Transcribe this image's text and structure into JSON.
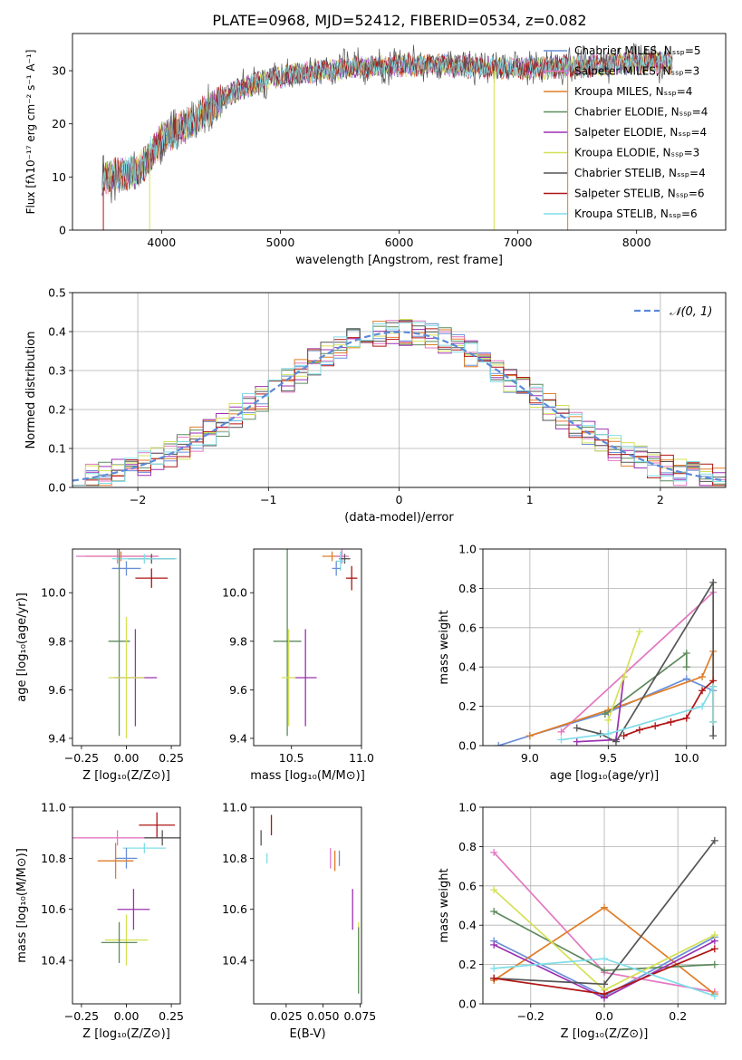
{
  "figure": {
    "title": "PLATE=0968, MJD=52412, FIBERID=0534, z=0.082"
  },
  "chart_data": [
    {
      "id": "spectrum",
      "type": "line",
      "xlabel": "wavelength [Angstrom, rest frame]",
      "ylabel": "Flux [fλ10⁻¹⁷ erg cm⁻² s⁻¹ A⁻¹]",
      "xlim": [
        3250,
        8750
      ],
      "ylim": [
        0,
        37
      ],
      "xticks": [
        4000,
        5000,
        6000,
        7000,
        8000
      ],
      "yticks": [
        0,
        10,
        20,
        30
      ],
      "grid": false,
      "legend_position": "top-right",
      "continuum_x": [
        3500,
        3800,
        3900,
        4000,
        4300,
        4600,
        4900,
        5200,
        5600,
        6000,
        6400,
        6800,
        7200,
        7600,
        8000,
        8300
      ],
      "continuum_y": [
        10,
        11,
        14,
        17,
        21,
        26,
        28.5,
        29.5,
        30.5,
        31,
        31,
        30.5,
        30.5,
        31,
        31.5,
        31.5
      ],
      "series": [
        {
          "name": "Chabrier MILES, Nₛₛₚ=5",
          "color": "#6a8fd8"
        },
        {
          "name": "Salpeter MILES, Nₛₛₚ=3",
          "color": "#e377c2"
        },
        {
          "name": "Kroupa MILES, Nₛₛₚ=4",
          "color": "#e07d28"
        },
        {
          "name": "Chabrier ELODIE, Nₛₛₚ=4",
          "color": "#5e8a5e"
        },
        {
          "name": "Salpeter ELODIE, Nₛₛₚ=4",
          "color": "#9b30b0"
        },
        {
          "name": "Kroupa ELODIE, Nₛₛₚ=3",
          "color": "#d4e157"
        },
        {
          "name": "Chabrier STELIB, Nₛₛₚ=4",
          "color": "#555555"
        },
        {
          "name": "Salpeter STELIB, Nₛₛₚ=6",
          "color": "#b01515"
        },
        {
          "name": "Kroupa STELIB, Nₛₛₚ=6",
          "color": "#80dde8"
        }
      ]
    },
    {
      "id": "residuals",
      "type": "histogram",
      "xlabel": "(data-model)/error",
      "ylabel": "Normed distribution",
      "xlim": [
        -2.5,
        2.5
      ],
      "ylim": [
        0,
        0.5
      ],
      "xticks": [
        -2,
        -1,
        0,
        1,
        2
      ],
      "xtick_labels": [
        "−2",
        "−1",
        "0",
        "1",
        "2"
      ],
      "yticks": [
        0.0,
        0.1,
        0.2,
        0.3,
        0.4,
        0.5
      ],
      "ytick_labels": [
        "0.0",
        "0.1",
        "0.2",
        "0.3",
        "0.4",
        "0.5"
      ],
      "grid": true,
      "bin_width": 0.1,
      "reference_curve": {
        "name": "𝒩(0, 1)",
        "color": "#5b8bd8"
      },
      "legend_position": "top-right"
    },
    {
      "id": "age_vs_Z",
      "type": "errorbar",
      "xlabel": "Z [log₁₀(Z/Z⊙)]",
      "ylabel": "age  [log₁₀(age/yr)]",
      "xlim": [
        -0.3,
        0.3
      ],
      "ylim": [
        9.37,
        10.18
      ],
      "xticks": [
        -0.25,
        0.0,
        0.25
      ],
      "xtick_labels": [
        "−0.25",
        "0.00",
        "0.25"
      ],
      "yticks": [
        9.4,
        9.6,
        9.8,
        10.0
      ],
      "ytick_labels": [
        "9.4",
        "9.6",
        "9.8",
        "10.0"
      ],
      "points": [
        {
          "color": "#e07d28",
          "x": -0.03,
          "y": 10.15,
          "xe": 0.2,
          "ye": 0.02
        },
        {
          "color": "#e377c2",
          "x": -0.05,
          "y": 10.15,
          "xe": 0.23,
          "ye": 0.03
        },
        {
          "color": "#555555",
          "x": 0.14,
          "y": 10.14,
          "xe": 0.13,
          "ye": 0.02
        },
        {
          "color": "#80dde8",
          "x": 0.1,
          "y": 10.14,
          "xe": 0.18,
          "ye": 0.02
        },
        {
          "color": "#6a8fd8",
          "x": 0.0,
          "y": 10.1,
          "xe": 0.08,
          "ye": 0.03
        },
        {
          "color": "#b01515",
          "x": 0.14,
          "y": 10.06,
          "xe": 0.09,
          "ye": 0.04
        },
        {
          "color": "#5e8a5e",
          "x": -0.04,
          "y": 9.8,
          "xe": 0.06,
          "ye": 0.39
        },
        {
          "color": "#9b30b0",
          "x": 0.05,
          "y": 9.65,
          "xe": 0.12,
          "ye": 0.2
        },
        {
          "color": "#d4e157",
          "x": 0.0,
          "y": 9.65,
          "xe": 0.1,
          "ye": 0.25
        }
      ]
    },
    {
      "id": "age_vs_mass",
      "type": "errorbar",
      "xlabel": "mass [log₁₀(M/M⊙)]",
      "xlim": [
        10.23,
        11.0
      ],
      "ylim": [
        9.37,
        10.18
      ],
      "xticks": [
        10.5,
        11.0
      ],
      "xtick_labels": [
        "10.5",
        "11.0"
      ],
      "yticks": [
        9.4,
        9.6,
        9.8,
        10.0
      ],
      "ytick_labels": [
        "9.4",
        "9.6",
        "9.8",
        "10.0"
      ],
      "points": [
        {
          "color": "#e07d28",
          "x": 10.79,
          "y": 10.15,
          "xe": 0.07,
          "ye": 0.02
        },
        {
          "color": "#e377c2",
          "x": 10.86,
          "y": 10.15,
          "xe": 0.05,
          "ye": 0.03
        },
        {
          "color": "#555555",
          "x": 10.88,
          "y": 10.14,
          "xe": 0.04,
          "ye": 0.02
        },
        {
          "color": "#80dde8",
          "x": 10.85,
          "y": 10.13,
          "xe": 0.03,
          "ye": 0.04
        },
        {
          "color": "#6a8fd8",
          "x": 10.82,
          "y": 10.1,
          "xe": 0.03,
          "ye": 0.03
        },
        {
          "color": "#b01515",
          "x": 10.93,
          "y": 10.06,
          "xe": 0.04,
          "ye": 0.05
        },
        {
          "color": "#5e8a5e",
          "x": 10.47,
          "y": 9.8,
          "xe": 0.1,
          "ye": 0.39
        },
        {
          "color": "#9b30b0",
          "x": 10.6,
          "y": 9.65,
          "xe": 0.08,
          "ye": 0.2
        },
        {
          "color": "#d4e157",
          "x": 10.48,
          "y": 9.65,
          "xe": 0.05,
          "ye": 0.2
        }
      ]
    },
    {
      "id": "massweight_vs_age",
      "type": "line",
      "xlabel": "age  [log₁₀(age/yr)]",
      "ylabel": "mass weight",
      "xlim": [
        8.7,
        10.25
      ],
      "ylim": [
        0,
        1.0
      ],
      "xticks": [
        9.0,
        9.5,
        10.0
      ],
      "xtick_labels": [
        "9.0",
        "9.5",
        "10.0"
      ],
      "yticks": [
        0.0,
        0.2,
        0.4,
        0.6,
        0.8,
        1.0
      ],
      "ytick_labels": [
        "0.0",
        "0.2",
        "0.4",
        "0.6",
        "0.8",
        "1.0"
      ],
      "grid": true,
      "series": [
        {
          "color": "#6a8fd8",
          "x": [
            8.8,
            9.0,
            9.5,
            10.0,
            10.17
          ],
          "y": [
            0.0,
            0.05,
            0.17,
            0.34,
            0.28
          ]
        },
        {
          "color": "#e377c2",
          "x": [
            9.2,
            10.17
          ],
          "y": [
            0.07,
            0.78
          ]
        },
        {
          "color": "#e07d28",
          "x": [
            9.0,
            9.5,
            10.1,
            10.17,
            10.17
          ],
          "y": [
            0.05,
            0.18,
            0.35,
            0.48,
            0.12
          ]
        },
        {
          "color": "#5e8a5e",
          "x": [
            9.48,
            10.0,
            10.0
          ],
          "y": [
            0.16,
            0.47,
            0.4
          ]
        },
        {
          "color": "#9b30b0",
          "x": [
            9.3,
            9.55,
            9.6
          ],
          "y": [
            0.02,
            0.03,
            0.35
          ]
        },
        {
          "color": "#d4e157",
          "x": [
            9.5,
            9.6,
            9.7
          ],
          "y": [
            0.13,
            0.35,
            0.58
          ]
        },
        {
          "color": "#555555",
          "x": [
            9.3,
            9.45,
            9.55,
            10.17,
            10.17,
            10.17
          ],
          "y": [
            0.09,
            0.06,
            0.02,
            0.83,
            0.3,
            0.05
          ]
        },
        {
          "color": "#b01515",
          "x": [
            9.6,
            9.7,
            9.8,
            9.9,
            10.0,
            10.1,
            10.17
          ],
          "y": [
            0.05,
            0.08,
            0.1,
            0.12,
            0.14,
            0.28,
            0.33
          ]
        },
        {
          "color": "#80dde8",
          "x": [
            9.2,
            9.5,
            10.1,
            10.17,
            10.17
          ],
          "y": [
            0.03,
            0.06,
            0.2,
            0.3,
            0.12
          ]
        }
      ]
    },
    {
      "id": "mass_vs_Z",
      "type": "errorbar",
      "xlabel": "Z [log₁₀(Z/Z⊙)]",
      "ylabel": "mass [log₁₀(M/M⊙)]",
      "xlim": [
        -0.3,
        0.3
      ],
      "ylim": [
        10.23,
        11.0
      ],
      "xticks": [
        -0.25,
        0.0,
        0.25
      ],
      "xtick_labels": [
        "−0.25",
        "0.00",
        "0.25"
      ],
      "yticks": [
        10.4,
        10.6,
        10.8,
        11.0
      ],
      "ytick_labels": [
        "10.4",
        "10.6",
        "10.8",
        "11.0"
      ],
      "points": [
        {
          "color": "#b01515",
          "x": 0.17,
          "y": 10.93,
          "xe": 0.1,
          "ye": 0.05
        },
        {
          "color": "#e377c2",
          "x": -0.05,
          "y": 10.88,
          "xe": 0.25,
          "ye": 0.03
        },
        {
          "color": "#555555",
          "x": 0.2,
          "y": 10.88,
          "xe": 0.1,
          "ye": 0.03
        },
        {
          "color": "#80dde8",
          "x": 0.1,
          "y": 10.84,
          "xe": 0.12,
          "ye": 0.02
        },
        {
          "color": "#6a8fd8",
          "x": 0.0,
          "y": 10.8,
          "xe": 0.06,
          "ye": 0.04
        },
        {
          "color": "#e07d28",
          "x": -0.06,
          "y": 10.79,
          "xe": 0.1,
          "ye": 0.07
        },
        {
          "color": "#9b30b0",
          "x": 0.04,
          "y": 10.6,
          "xe": 0.09,
          "ye": 0.08
        },
        {
          "color": "#d4e157",
          "x": 0.0,
          "y": 10.48,
          "xe": 0.12,
          "ye": 0.1
        },
        {
          "color": "#5e8a5e",
          "x": -0.04,
          "y": 10.47,
          "xe": 0.1,
          "ye": 0.08
        }
      ]
    },
    {
      "id": "mass_vs_EBV",
      "type": "errorbar",
      "xlabel": "E(B-V)",
      "xlim": [
        0.003,
        0.076
      ],
      "ylim": [
        10.23,
        11.0
      ],
      "xticks": [
        0.025,
        0.05,
        0.075
      ],
      "xtick_labels": [
        "0.025",
        "0.050",
        "0.075"
      ],
      "yticks": [
        10.4,
        10.6,
        10.8,
        11.0
      ],
      "ytick_labels": [
        "10.4",
        "10.6",
        "10.8",
        "11.0"
      ],
      "points": [
        {
          "color": "#555555",
          "x": 0.008,
          "y": 10.88,
          "xe": 0.0,
          "ye": 0.03
        },
        {
          "color": "#b01515",
          "x": 0.015,
          "y": 10.93,
          "xe": 0.0,
          "ye": 0.04
        },
        {
          "color": "#80dde8",
          "x": 0.012,
          "y": 10.8,
          "xe": 0.0,
          "ye": 0.02
        },
        {
          "color": "#e377c2",
          "x": 0.055,
          "y": 10.8,
          "xe": 0.0,
          "ye": 0.04
        },
        {
          "color": "#e07d28",
          "x": 0.058,
          "y": 10.79,
          "xe": 0.0,
          "ye": 0.04
        },
        {
          "color": "#6a8fd8",
          "x": 0.061,
          "y": 10.8,
          "xe": 0.0,
          "ye": 0.03
        },
        {
          "color": "#9b30b0",
          "x": 0.07,
          "y": 10.6,
          "xe": 0.0,
          "ye": 0.08
        },
        {
          "color": "#d4e157",
          "x": 0.074,
          "y": 10.45,
          "xe": 0.0,
          "ye": 0.1
        },
        {
          "color": "#5e8a5e",
          "x": 0.074,
          "y": 10.4,
          "xe": 0.0,
          "ye": 0.13
        }
      ]
    },
    {
      "id": "massweight_vs_Z",
      "type": "line",
      "xlabel": "Z [log₁₀(Z/Z⊙)]",
      "ylabel": "mass weight",
      "xlim": [
        -0.33,
        0.33
      ],
      "ylim": [
        0,
        1.0
      ],
      "xticks": [
        -0.2,
        0.0,
        0.2
      ],
      "xtick_labels": [
        "−0.2",
        "0.0",
        "0.2"
      ],
      "yticks": [
        0.0,
        0.2,
        0.4,
        0.6,
        0.8,
        1.0
      ],
      "ytick_labels": [
        "0.0",
        "0.2",
        "0.4",
        "0.6",
        "0.8",
        "1.0"
      ],
      "grid": true,
      "series": [
        {
          "color": "#6a8fd8",
          "x": [
            -0.3,
            0.0,
            0.3
          ],
          "y": [
            0.32,
            0.04,
            0.34
          ]
        },
        {
          "color": "#e377c2",
          "x": [
            -0.3,
            0.0,
            0.3
          ],
          "y": [
            0.77,
            0.16,
            0.06
          ]
        },
        {
          "color": "#e07d28",
          "x": [
            -0.3,
            0.0,
            0.3
          ],
          "y": [
            0.12,
            0.49,
            0.05
          ]
        },
        {
          "color": "#5e8a5e",
          "x": [
            -0.3,
            0.0,
            0.3
          ],
          "y": [
            0.47,
            0.17,
            0.2
          ]
        },
        {
          "color": "#9b30b0",
          "x": [
            -0.3,
            0.0,
            0.3
          ],
          "y": [
            0.3,
            0.03,
            0.32
          ]
        },
        {
          "color": "#d4e157",
          "x": [
            -0.3,
            0.0,
            0.3
          ],
          "y": [
            0.58,
            0.07,
            0.35
          ]
        },
        {
          "color": "#555555",
          "x": [
            -0.3,
            0.0,
            0.3
          ],
          "y": [
            0.13,
            0.1,
            0.83
          ]
        },
        {
          "color": "#b01515",
          "x": [
            -0.3,
            0.0,
            0.3
          ],
          "y": [
            0.13,
            0.05,
            0.28
          ]
        },
        {
          "color": "#80dde8",
          "x": [
            -0.3,
            0.0,
            0.3
          ],
          "y": [
            0.18,
            0.23,
            0.04
          ]
        }
      ]
    }
  ]
}
